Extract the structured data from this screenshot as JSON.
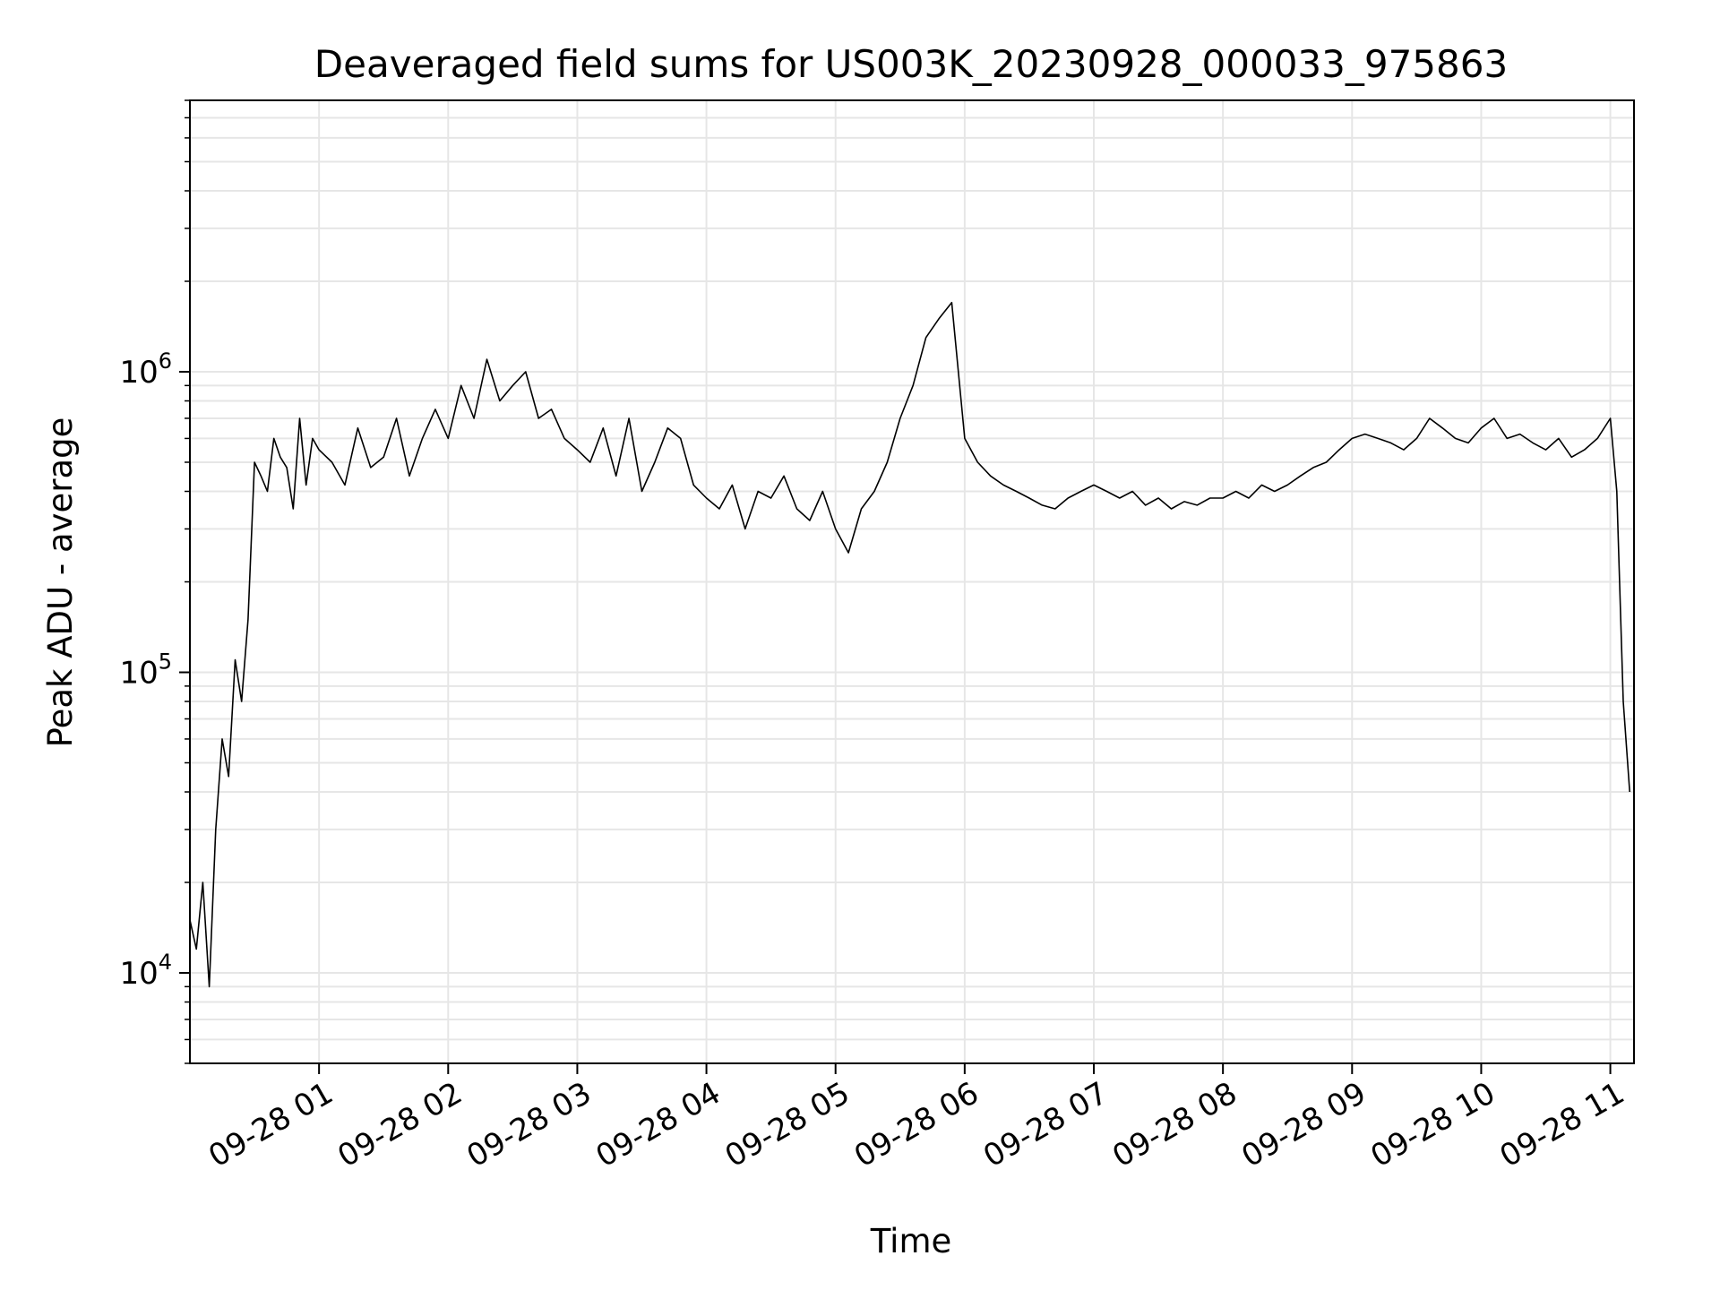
{
  "chart_data": {
    "type": "line",
    "title": "Deaveraged field sums for US003K_20230928_000033_975863",
    "xlabel": "Time",
    "ylabel": "Peak ADU - average",
    "y_scale": "log",
    "ylim": [
      5000,
      8000000
    ],
    "xlim": [
      "2023-09-28 00:00:00",
      "2023-09-28 11:11:00"
    ],
    "grid": true,
    "legend": "none",
    "line_color": "#000000",
    "grid_color": "#e6e6e6",
    "x_ticks": [
      {
        "t": "2023-09-28 01:00",
        "label": "09-28 01"
      },
      {
        "t": "2023-09-28 02:00",
        "label": "09-28 02"
      },
      {
        "t": "2023-09-28 03:00",
        "label": "09-28 03"
      },
      {
        "t": "2023-09-28 04:00",
        "label": "09-28 04"
      },
      {
        "t": "2023-09-28 05:00",
        "label": "09-28 05"
      },
      {
        "t": "2023-09-28 06:00",
        "label": "09-28 06"
      },
      {
        "t": "2023-09-28 07:00",
        "label": "09-28 07"
      },
      {
        "t": "2023-09-28 08:00",
        "label": "09-28 08"
      },
      {
        "t": "2023-09-28 09:00",
        "label": "09-28 09"
      },
      {
        "t": "2023-09-28 10:00",
        "label": "09-28 10"
      },
      {
        "t": "2023-09-28 11:00",
        "label": "09-28 11"
      }
    ],
    "y_ticks": [
      {
        "value": 10000,
        "base": "10",
        "exp": "4"
      },
      {
        "value": 100000,
        "base": "10",
        "exp": "5"
      },
      {
        "value": 1000000,
        "base": "10",
        "exp": "6"
      }
    ],
    "series": [
      {
        "x": [
          "2023-09-28 00:00",
          "2023-09-28 00:03",
          "2023-09-28 00:06",
          "2023-09-28 00:09",
          "2023-09-28 00:12",
          "2023-09-28 00:15",
          "2023-09-28 00:18",
          "2023-09-28 00:21",
          "2023-09-28 00:24",
          "2023-09-28 00:27",
          "2023-09-28 00:30",
          "2023-09-28 00:33",
          "2023-09-28 00:36",
          "2023-09-28 00:39",
          "2023-09-28 00:42",
          "2023-09-28 00:45",
          "2023-09-28 00:48",
          "2023-09-28 00:51",
          "2023-09-28 00:54",
          "2023-09-28 00:57",
          "2023-09-28 01:00",
          "2023-09-28 01:06",
          "2023-09-28 01:12",
          "2023-09-28 01:18",
          "2023-09-28 01:24",
          "2023-09-28 01:30",
          "2023-09-28 01:36",
          "2023-09-28 01:42",
          "2023-09-28 01:48",
          "2023-09-28 01:54",
          "2023-09-28 02:00",
          "2023-09-28 02:06",
          "2023-09-28 02:12",
          "2023-09-28 02:18",
          "2023-09-28 02:24",
          "2023-09-28 02:30",
          "2023-09-28 02:36",
          "2023-09-28 02:42",
          "2023-09-28 02:48",
          "2023-09-28 02:54",
          "2023-09-28 03:00",
          "2023-09-28 03:06",
          "2023-09-28 03:12",
          "2023-09-28 03:18",
          "2023-09-28 03:24",
          "2023-09-28 03:30",
          "2023-09-28 03:36",
          "2023-09-28 03:42",
          "2023-09-28 03:48",
          "2023-09-28 03:54",
          "2023-09-28 04:00",
          "2023-09-28 04:06",
          "2023-09-28 04:12",
          "2023-09-28 04:18",
          "2023-09-28 04:24",
          "2023-09-28 04:30",
          "2023-09-28 04:36",
          "2023-09-28 04:42",
          "2023-09-28 04:48",
          "2023-09-28 04:54",
          "2023-09-28 05:00",
          "2023-09-28 05:06",
          "2023-09-28 05:12",
          "2023-09-28 05:18",
          "2023-09-28 05:24",
          "2023-09-28 05:30",
          "2023-09-28 05:36",
          "2023-09-28 05:42",
          "2023-09-28 05:48",
          "2023-09-28 05:54",
          "2023-09-28 06:00",
          "2023-09-28 06:06",
          "2023-09-28 06:12",
          "2023-09-28 06:18",
          "2023-09-28 06:24",
          "2023-09-28 06:30",
          "2023-09-28 06:36",
          "2023-09-28 06:42",
          "2023-09-28 06:48",
          "2023-09-28 06:54",
          "2023-09-28 07:00",
          "2023-09-28 07:06",
          "2023-09-28 07:12",
          "2023-09-28 07:18",
          "2023-09-28 07:24",
          "2023-09-28 07:30",
          "2023-09-28 07:36",
          "2023-09-28 07:42",
          "2023-09-28 07:48",
          "2023-09-28 07:54",
          "2023-09-28 08:00",
          "2023-09-28 08:06",
          "2023-09-28 08:12",
          "2023-09-28 08:18",
          "2023-09-28 08:24",
          "2023-09-28 08:30",
          "2023-09-28 08:36",
          "2023-09-28 08:42",
          "2023-09-28 08:48",
          "2023-09-28 08:54",
          "2023-09-28 09:00",
          "2023-09-28 09:06",
          "2023-09-28 09:12",
          "2023-09-28 09:18",
          "2023-09-28 09:24",
          "2023-09-28 09:30",
          "2023-09-28 09:36",
          "2023-09-28 09:42",
          "2023-09-28 09:48",
          "2023-09-28 09:54",
          "2023-09-28 10:00",
          "2023-09-28 10:06",
          "2023-09-28 10:12",
          "2023-09-28 10:18",
          "2023-09-28 10:24",
          "2023-09-28 10:30",
          "2023-09-28 10:36",
          "2023-09-28 10:42",
          "2023-09-28 10:48",
          "2023-09-28 10:54",
          "2023-09-28 11:00",
          "2023-09-28 11:03",
          "2023-09-28 11:06",
          "2023-09-28 11:09"
        ],
        "y": [
          15000,
          12000,
          20000,
          9000,
          30000,
          60000,
          45000,
          110000,
          80000,
          150000,
          500000,
          450000,
          400000,
          600000,
          520000,
          480000,
          350000,
          700000,
          420000,
          600000,
          550000,
          500000,
          420000,
          650000,
          480000,
          520000,
          700000,
          450000,
          600000,
          750000,
          600000,
          900000,
          700000,
          1100000,
          800000,
          900000,
          1000000,
          700000,
          750000,
          600000,
          550000,
          500000,
          650000,
          450000,
          700000,
          400000,
          500000,
          650000,
          600000,
          420000,
          380000,
          350000,
          420000,
          300000,
          400000,
          380000,
          450000,
          350000,
          320000,
          400000,
          300000,
          250000,
          350000,
          400000,
          500000,
          700000,
          900000,
          1300000,
          1500000,
          1700000,
          600000,
          500000,
          450000,
          420000,
          400000,
          380000,
          360000,
          350000,
          380000,
          400000,
          420000,
          400000,
          380000,
          400000,
          360000,
          380000,
          350000,
          370000,
          360000,
          380000,
          380000,
          400000,
          380000,
          420000,
          400000,
          420000,
          450000,
          480000,
          500000,
          550000,
          600000,
          620000,
          600000,
          580000,
          550000,
          600000,
          700000,
          650000,
          600000,
          580000,
          650000,
          700000,
          600000,
          620000,
          580000,
          550000,
          600000,
          520000,
          550000,
          600000,
          700000,
          400000,
          80000,
          40000
        ]
      }
    ]
  }
}
